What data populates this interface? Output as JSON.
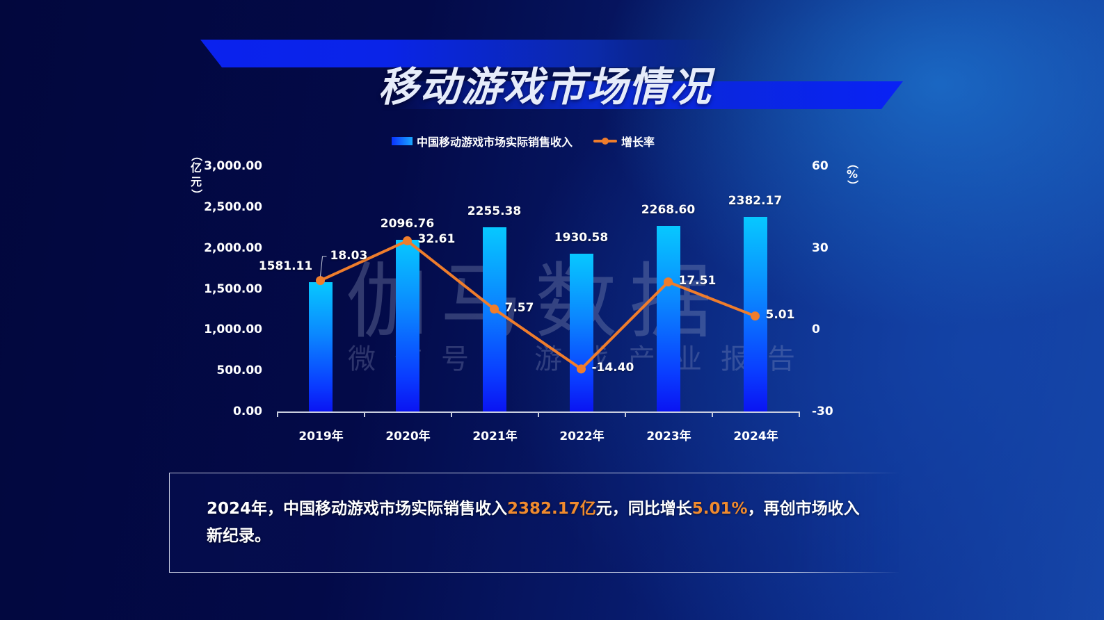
{
  "page": {
    "title": "移动游戏市场情况"
  },
  "legend": {
    "bar_label": "中国移动游戏市场实际销售收入",
    "line_label": "增长率"
  },
  "axes": {
    "left_unit": [
      "（",
      "亿",
      "元",
      "）"
    ],
    "right_unit": [
      "（",
      "%",
      "）"
    ],
    "left_ticks": [
      {
        "label": "3,000.00",
        "y": 239
      },
      {
        "label": "2,500.00",
        "y": 298
      },
      {
        "label": "2,000.00",
        "y": 357
      },
      {
        "label": "1,500.00",
        "y": 416
      },
      {
        "label": "1,000.00",
        "y": 474
      },
      {
        "label": "500.00",
        "y": 533
      },
      {
        "label": "0.00",
        "y": 592
      }
    ],
    "right_ticks": [
      {
        "label": "60",
        "y": 239
      },
      {
        "label": "30",
        "y": 357
      },
      {
        "label": "0",
        "y": 474
      },
      {
        "label": "-30",
        "y": 592
      }
    ]
  },
  "watermark": {
    "main": "伽马数据",
    "sub": "微信号：游戏产业报告"
  },
  "summary": {
    "part1": "2024年，中国移动游戏市场实际销售收入",
    "highlight1": "2382.17亿",
    "part2": "元，同比增长",
    "highlight2": "5.01%",
    "part3": "，再创市场收入新纪录。"
  },
  "colors": {
    "bar_top": "#07c8ff",
    "bar_bottom": "#0a14f2",
    "line": "#ef7d2c",
    "highlight": "#f08a2e",
    "title_band": "#0a22ee"
  },
  "chart_data": {
    "type": "bar+line",
    "title": "移动游戏市场情况",
    "categories": [
      "2019年",
      "2020年",
      "2021年",
      "2022年",
      "2023年",
      "2024年"
    ],
    "series": [
      {
        "name": "中国移动游戏市场实际销售收入",
        "type": "bar",
        "axis": "left",
        "values": [
          1581.11,
          2096.76,
          2255.38,
          1930.58,
          2268.6,
          2382.17
        ],
        "labels": [
          "1581.11",
          "2096.76",
          "2255.38",
          "1930.58",
          "2268.60",
          "2382.17"
        ]
      },
      {
        "name": "增长率",
        "type": "line",
        "axis": "right",
        "values": [
          18.03,
          32.61,
          7.57,
          -14.4,
          17.51,
          5.01
        ],
        "labels": [
          "18.03",
          "32.61",
          "7.57",
          "-14.40",
          "17.51",
          "5.01"
        ]
      }
    ],
    "ylabel": "亿元",
    "y2label": "%",
    "ylim": [
      0,
      3000
    ],
    "y2lim": [
      -30,
      60
    ],
    "yticks": [
      0,
      500,
      1000,
      1500,
      2000,
      2500,
      3000
    ],
    "y2ticks": [
      -30,
      0,
      30,
      60
    ],
    "grid": false,
    "legend_position": "top"
  }
}
